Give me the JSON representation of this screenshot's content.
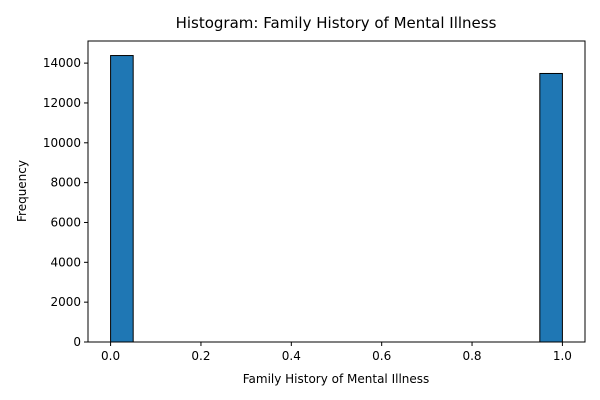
{
  "chart_data": {
    "type": "bar",
    "title": "Histogram: Family History of Mental Illness",
    "xlabel": "Family History of Mental Illness",
    "ylabel": "Frequency",
    "bins": [
      {
        "x0": 0.0,
        "x1": 0.05,
        "count": 14380
      },
      {
        "x0": 0.95,
        "x1": 1.0,
        "count": 13480
      }
    ],
    "xlim": [
      -0.05,
      1.05
    ],
    "ylim": [
      0,
      15110
    ],
    "xticks": [
      0.0,
      0.2,
      0.4,
      0.6,
      0.8,
      1.0
    ],
    "xtick_labels": [
      "0.0",
      "0.2",
      "0.4",
      "0.6",
      "0.8",
      "1.0"
    ],
    "yticks": [
      0,
      2000,
      4000,
      6000,
      8000,
      10000,
      12000,
      14000
    ],
    "ytick_labels": [
      "0",
      "2000",
      "4000",
      "6000",
      "8000",
      "10000",
      "12000",
      "14000"
    ],
    "grid": false,
    "legend": "none",
    "colors": {
      "bar_fill": "#1f77b4",
      "bar_edge": "#000000",
      "axis": "#000000"
    }
  }
}
